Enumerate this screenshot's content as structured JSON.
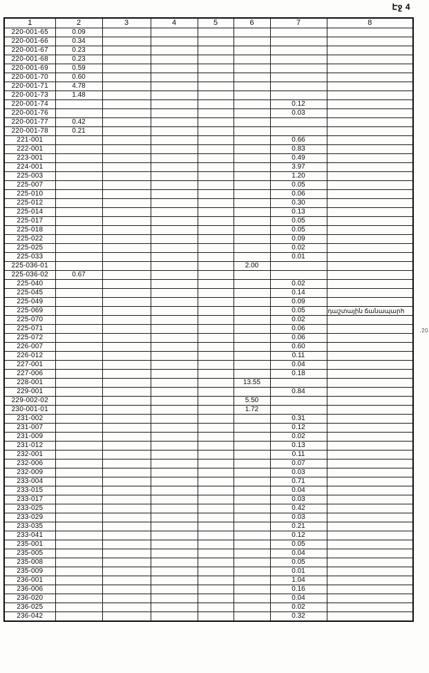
{
  "page": {
    "label": "Էջ 4",
    "margin_note": ".20"
  },
  "table": {
    "headers": [
      "1",
      "2",
      "3",
      "4",
      "5",
      "6",
      "7",
      "8"
    ],
    "rows": [
      [
        "220-001-65",
        "0.09",
        "",
        "",
        "",
        "",
        "",
        ""
      ],
      [
        "220-001-66",
        "0.34",
        "",
        "",
        "",
        "",
        "",
        ""
      ],
      [
        "220-001-67",
        "0.23",
        "",
        "",
        "",
        "",
        "",
        ""
      ],
      [
        "220-001-68",
        "0.23",
        "",
        "",
        "",
        "",
        "",
        ""
      ],
      [
        "220-001-69",
        "0.59",
        "",
        "",
        "",
        "",
        "",
        ""
      ],
      [
        "220-001-70",
        "0.60",
        "",
        "",
        "",
        "",
        "",
        ""
      ],
      [
        "220-001-71",
        "4.78",
        "",
        "",
        "",
        "",
        "",
        ""
      ],
      [
        "220-001-73",
        "1.48",
        "",
        "",
        "",
        "",
        "",
        ""
      ],
      [
        "220-001-74",
        "",
        "",
        "",
        "",
        "",
        "0.12",
        ""
      ],
      [
        "220-001-76",
        "",
        "",
        "",
        "",
        "",
        "0.03",
        ""
      ],
      [
        "220-001-77",
        "0.42",
        "",
        "",
        "",
        "",
        "",
        ""
      ],
      [
        "220-001-78",
        "0.21",
        "",
        "",
        "",
        "",
        "",
        ""
      ],
      [
        "221-001",
        "",
        "",
        "",
        "",
        "",
        "0.66",
        ""
      ],
      [
        "222-001",
        "",
        "",
        "",
        "",
        "",
        "0.83",
        ""
      ],
      [
        "223-001",
        "",
        "",
        "",
        "",
        "",
        "0.49",
        ""
      ],
      [
        "224-001",
        "",
        "",
        "",
        "",
        "",
        "3.97",
        ""
      ],
      [
        "225-003",
        "",
        "",
        "",
        "",
        "",
        "1.20",
        ""
      ],
      [
        "225-007",
        "",
        "",
        "",
        "",
        "",
        "0.05",
        ""
      ],
      [
        "225-010",
        "",
        "",
        "",
        "",
        "",
        "0.06",
        ""
      ],
      [
        "225-012",
        "",
        "",
        "",
        "",
        "",
        "0.30",
        ""
      ],
      [
        "225-014",
        "",
        "",
        "",
        "",
        "",
        "0.13",
        ""
      ],
      [
        "225-017",
        "",
        "",
        "",
        "",
        "",
        "0.05",
        ""
      ],
      [
        "225-018",
        "",
        "",
        "",
        "",
        "",
        "0.05",
        ""
      ],
      [
        "225-022",
        "",
        "",
        "",
        "",
        "",
        "0.09",
        ""
      ],
      [
        "225-025",
        "",
        "",
        "",
        "",
        "",
        "0.02",
        ""
      ],
      [
        "225-033",
        "",
        "",
        "",
        "",
        "",
        "0.01",
        ""
      ],
      [
        "225-036-01",
        "",
        "",
        "",
        "",
        "2.00",
        "",
        ""
      ],
      [
        "225-036-02",
        "0.67",
        "",
        "",
        "",
        "",
        "",
        ""
      ],
      [
        "225-040",
        "",
        "",
        "",
        "",
        "",
        "0.02",
        ""
      ],
      [
        "225-045",
        "",
        "",
        "",
        "",
        "",
        "0.14",
        ""
      ],
      [
        "225-049",
        "",
        "",
        "",
        "",
        "",
        "0.09",
        ""
      ],
      [
        "225-069",
        "",
        "",
        "",
        "",
        "",
        "0.05",
        "դաշտային ճանապարհ"
      ],
      [
        "225-070",
        "",
        "",
        "",
        "",
        "",
        "0.02",
        ""
      ],
      [
        "225-071",
        "",
        "",
        "",
        "",
        "",
        "0.06",
        ""
      ],
      [
        "225-072",
        "",
        "",
        "",
        "",
        "",
        "0.06",
        ""
      ],
      [
        "226-007",
        "",
        "",
        "",
        "",
        "",
        "0.60",
        ""
      ],
      [
        "226-012",
        "",
        "",
        "",
        "",
        "",
        "0.11",
        ""
      ],
      [
        "227-001",
        "",
        "",
        "",
        "",
        "",
        "0.04",
        ""
      ],
      [
        "227-006",
        "",
        "",
        "",
        "",
        "",
        "0.18",
        ""
      ],
      [
        "228-001",
        "",
        "",
        "",
        "",
        "13.55",
        "",
        ""
      ],
      [
        "229-001",
        "",
        "",
        "",
        "",
        "",
        "0.84",
        ""
      ],
      [
        "229-002-02",
        "",
        "",
        "",
        "",
        "5.50",
        "",
        ""
      ],
      [
        "230-001-01",
        "",
        "",
        "",
        "",
        "1.72",
        "",
        ""
      ],
      [
        "231-002",
        "",
        "",
        "",
        "",
        "",
        "0.31",
        ""
      ],
      [
        "231-007",
        "",
        "",
        "",
        "",
        "",
        "0.12",
        ""
      ],
      [
        "231-009",
        "",
        "",
        "",
        "",
        "",
        "0.02",
        ""
      ],
      [
        "231-012",
        "",
        "",
        "",
        "",
        "",
        "0.13",
        ""
      ],
      [
        "232-001",
        "",
        "",
        "",
        "",
        "",
        "0.11",
        ""
      ],
      [
        "232-006",
        "",
        "",
        "",
        "",
        "",
        "0.07",
        ""
      ],
      [
        "232-009",
        "",
        "",
        "",
        "",
        "",
        "0.03",
        ""
      ],
      [
        "233-004",
        "",
        "",
        "",
        "",
        "",
        "0.71",
        ""
      ],
      [
        "233-015",
        "",
        "",
        "",
        "",
        "",
        "0.04",
        ""
      ],
      [
        "233-017",
        "",
        "",
        "",
        "",
        "",
        "0.03",
        ""
      ],
      [
        "233-025",
        "",
        "",
        "",
        "",
        "",
        "0.42",
        ""
      ],
      [
        "233-029",
        "",
        "",
        "",
        "",
        "",
        "0.03",
        ""
      ],
      [
        "233-035",
        "",
        "",
        "",
        "",
        "",
        "0.21",
        ""
      ],
      [
        "233-041",
        "",
        "",
        "",
        "",
        "",
        "0.12",
        ""
      ],
      [
        "235-001",
        "",
        "",
        "",
        "",
        "",
        "0.05",
        ""
      ],
      [
        "235-005",
        "",
        "",
        "",
        "",
        "",
        "0.04",
        ""
      ],
      [
        "235-008",
        "",
        "",
        "",
        "",
        "",
        "0.05",
        ""
      ],
      [
        "235-009",
        "",
        "",
        "",
        "",
        "",
        "0.01",
        ""
      ],
      [
        "236-001",
        "",
        "",
        "",
        "",
        "",
        "1.04",
        ""
      ],
      [
        "236-006",
        "",
        "",
        "",
        "",
        "",
        "0.16",
        ""
      ],
      [
        "236-020",
        "",
        "",
        "",
        "",
        "",
        "0.04",
        ""
      ],
      [
        "236-025",
        "",
        "",
        "",
        "",
        "",
        "0.02",
        ""
      ],
      [
        "236-042",
        "",
        "",
        "",
        "",
        "",
        "0.32",
        ""
      ]
    ]
  }
}
